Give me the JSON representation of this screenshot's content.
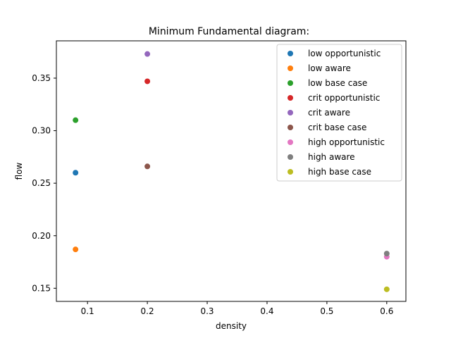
{
  "chart_data": {
    "type": "scatter",
    "title": "Minimum Fundamental diagram:",
    "xlabel": "density",
    "ylabel": "flow",
    "xlim": [
      0.048,
      0.632
    ],
    "ylim": [
      0.1375,
      0.3855
    ],
    "xticks": [
      0.1,
      0.2,
      0.3,
      0.4,
      0.5,
      0.6
    ],
    "xtick_labels": [
      "0.1",
      "0.2",
      "0.3",
      "0.4",
      "0.5",
      "0.6"
    ],
    "yticks": [
      0.15,
      0.2,
      0.25,
      0.3,
      0.35
    ],
    "ytick_labels": [
      "0.15",
      "0.20",
      "0.25",
      "0.30",
      "0.35"
    ],
    "grid": false,
    "legend_position": "top-right",
    "series": [
      {
        "name": "low opportunistic",
        "color": "#1f77b4",
        "x": [
          0.08
        ],
        "y": [
          0.26
        ]
      },
      {
        "name": "low aware",
        "color": "#ff7f0e",
        "x": [
          0.08
        ],
        "y": [
          0.187
        ]
      },
      {
        "name": "low base case",
        "color": "#2ca02c",
        "x": [
          0.08
        ],
        "y": [
          0.31
        ]
      },
      {
        "name": "crit opportunistic",
        "color": "#d62728",
        "x": [
          0.2
        ],
        "y": [
          0.347
        ]
      },
      {
        "name": "crit aware",
        "color": "#9467bd",
        "x": [
          0.2
        ],
        "y": [
          0.373
        ]
      },
      {
        "name": "crit base case",
        "color": "#8c564b",
        "x": [
          0.2
        ],
        "y": [
          0.266
        ]
      },
      {
        "name": "high opportunistic",
        "color": "#e377c2",
        "x": [
          0.6
        ],
        "y": [
          0.18
        ]
      },
      {
        "name": "high aware",
        "color": "#7f7f7f",
        "x": [
          0.6
        ],
        "y": [
          0.183
        ]
      },
      {
        "name": "high base case",
        "color": "#bcbd22",
        "x": [
          0.6
        ],
        "y": [
          0.149
        ]
      }
    ]
  }
}
